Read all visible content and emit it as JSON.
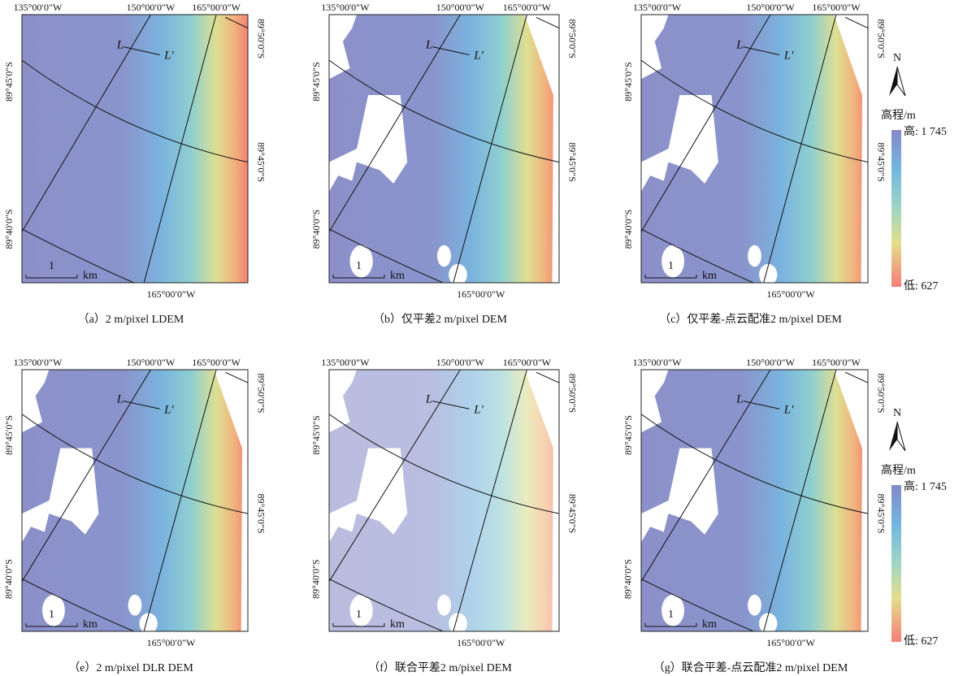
{
  "panels": [
    {
      "caption": "（a）2 m/pixel LDEM",
      "top": [
        "135°00′0″W",
        "150°00′0″W",
        "165°00′0″W"
      ],
      "left": [
        "89°45′0″S",
        "89°40′0″S"
      ],
      "right": [
        "89°50′0″S",
        "89°45′0″S"
      ],
      "bottom": "165°00′0″W",
      "line_start": "L",
      "line_end": "L′",
      "scale": "1",
      "scale_unit": "km"
    },
    {
      "caption": "（b）仅平差2 m/pixel DEM",
      "top": [
        "135°00'0\"W",
        "150°00'0\"W",
        "165°00'0\"W"
      ],
      "left": [
        "89°45'0\"S",
        "89°40'0\"S"
      ],
      "right": [
        "89°50'0\"S",
        "89°45'0\"S"
      ],
      "bottom": "165°00'0\"W",
      "line_start": "L",
      "line_end": "L′",
      "scale": "1",
      "scale_unit": "km"
    },
    {
      "caption": "（c）仅平差-点云配准2 m/pixel DEM",
      "top": [
        "135°00'0\"W",
        "150°00'0\"W",
        "165°00'0\"W"
      ],
      "left": [
        "89°45'0\"S",
        "89°40'0\"S"
      ],
      "right": [
        "89°50'0\"S",
        "89°45'0\"S"
      ],
      "bottom": "165°00'0\"W",
      "line_start": "L",
      "line_end": "L′",
      "scale": "1",
      "scale_unit": "km"
    },
    {
      "caption": "（e）2 m/pixel DLR DEM",
      "top": [
        "135°00′0″W",
        "150°00′0″W",
        "165°00′0″W"
      ],
      "left": [
        "89°45′0″S",
        "89°40′0″S"
      ],
      "right": [
        "89°50′0″S",
        "89°45′0″S"
      ],
      "bottom": "165°00′0″W",
      "line_start": "L",
      "line_end": "L′",
      "scale": "1",
      "scale_unit": "km"
    },
    {
      "caption": "（f）联合平差2 m/pixel DEM",
      "top": [
        "135°00'0\"W",
        "150°00'0\"W",
        "165°00'0\"W"
      ],
      "left": [
        "89°45'0\"S",
        "89°40'0\"S"
      ],
      "right": [
        "89°50'0\"S",
        "89°45'0\"S"
      ],
      "bottom": "165°00'0\"W",
      "line_start": "L",
      "line_end": "L′",
      "scale": "1",
      "scale_unit": "km"
    },
    {
      "caption": "（g）联合平差-点云配准2 m/pixel DEM",
      "top": [
        "135°00′0″W",
        "150°00′0″W",
        "165°00′0″W"
      ],
      "left": [
        "89°45′0″S",
        "89°40′0″S"
      ],
      "right": [
        "89°50′0″S",
        "89°45′0″S"
      ],
      "bottom": "165°00′0″W",
      "line_start": "L",
      "line_end": "L′",
      "scale": "1",
      "scale_unit": "km"
    }
  ],
  "legends": [
    {
      "north": "N",
      "title": "高程/m",
      "high": "高: 1 745",
      "low": "低: 627"
    },
    {
      "north": "N",
      "title": "高程/m",
      "high": "高: 1 745",
      "low": "低: 627"
    }
  ]
}
